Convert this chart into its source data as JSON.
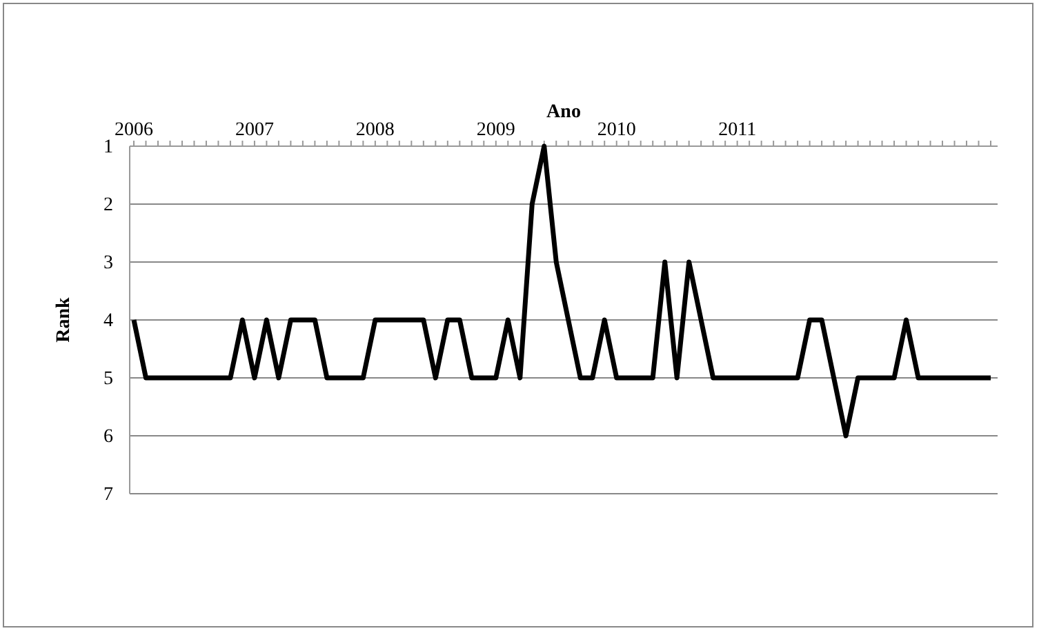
{
  "chart_data": {
    "type": "line",
    "xlabel": "Ano",
    "ylabel": "Rank",
    "categories": [
      "2006",
      null,
      null,
      null,
      null,
      null,
      null,
      null,
      null,
      null,
      "2007",
      null,
      null,
      null,
      null,
      null,
      null,
      null,
      null,
      null,
      "2008",
      null,
      null,
      null,
      null,
      null,
      null,
      null,
      null,
      null,
      "2009",
      null,
      null,
      null,
      null,
      null,
      null,
      null,
      null,
      null,
      "2010",
      null,
      null,
      null,
      null,
      null,
      null,
      null,
      null,
      null,
      "2011",
      null,
      null,
      null,
      null,
      null,
      null,
      null,
      null,
      null,
      null,
      null,
      null,
      null,
      null,
      null,
      null,
      null,
      null,
      null,
      null,
      null
    ],
    "series": [
      {
        "color": "#000000",
        "values": [
          4,
          5,
          5,
          5,
          5,
          5,
          5,
          5,
          5,
          4,
          5,
          4,
          5,
          4,
          4,
          4,
          5,
          5,
          5,
          5,
          4,
          4,
          4,
          4,
          4,
          5,
          4,
          4,
          5,
          5,
          5,
          4,
          5,
          2,
          1,
          3,
          4,
          5,
          5,
          4,
          5,
          5,
          5,
          5,
          3,
          5,
          3,
          4,
          5,
          5,
          5,
          5,
          5,
          5,
          5,
          5,
          4,
          4,
          5,
          6,
          5,
          5,
          5,
          5,
          4,
          5,
          5,
          5,
          5,
          5,
          5,
          5
        ]
      }
    ],
    "ylim": [
      7,
      1
    ],
    "yticks": [
      1,
      2,
      3,
      4,
      5,
      6,
      7
    ],
    "grid": "y",
    "marker": "none",
    "line_style": "solid"
  }
}
